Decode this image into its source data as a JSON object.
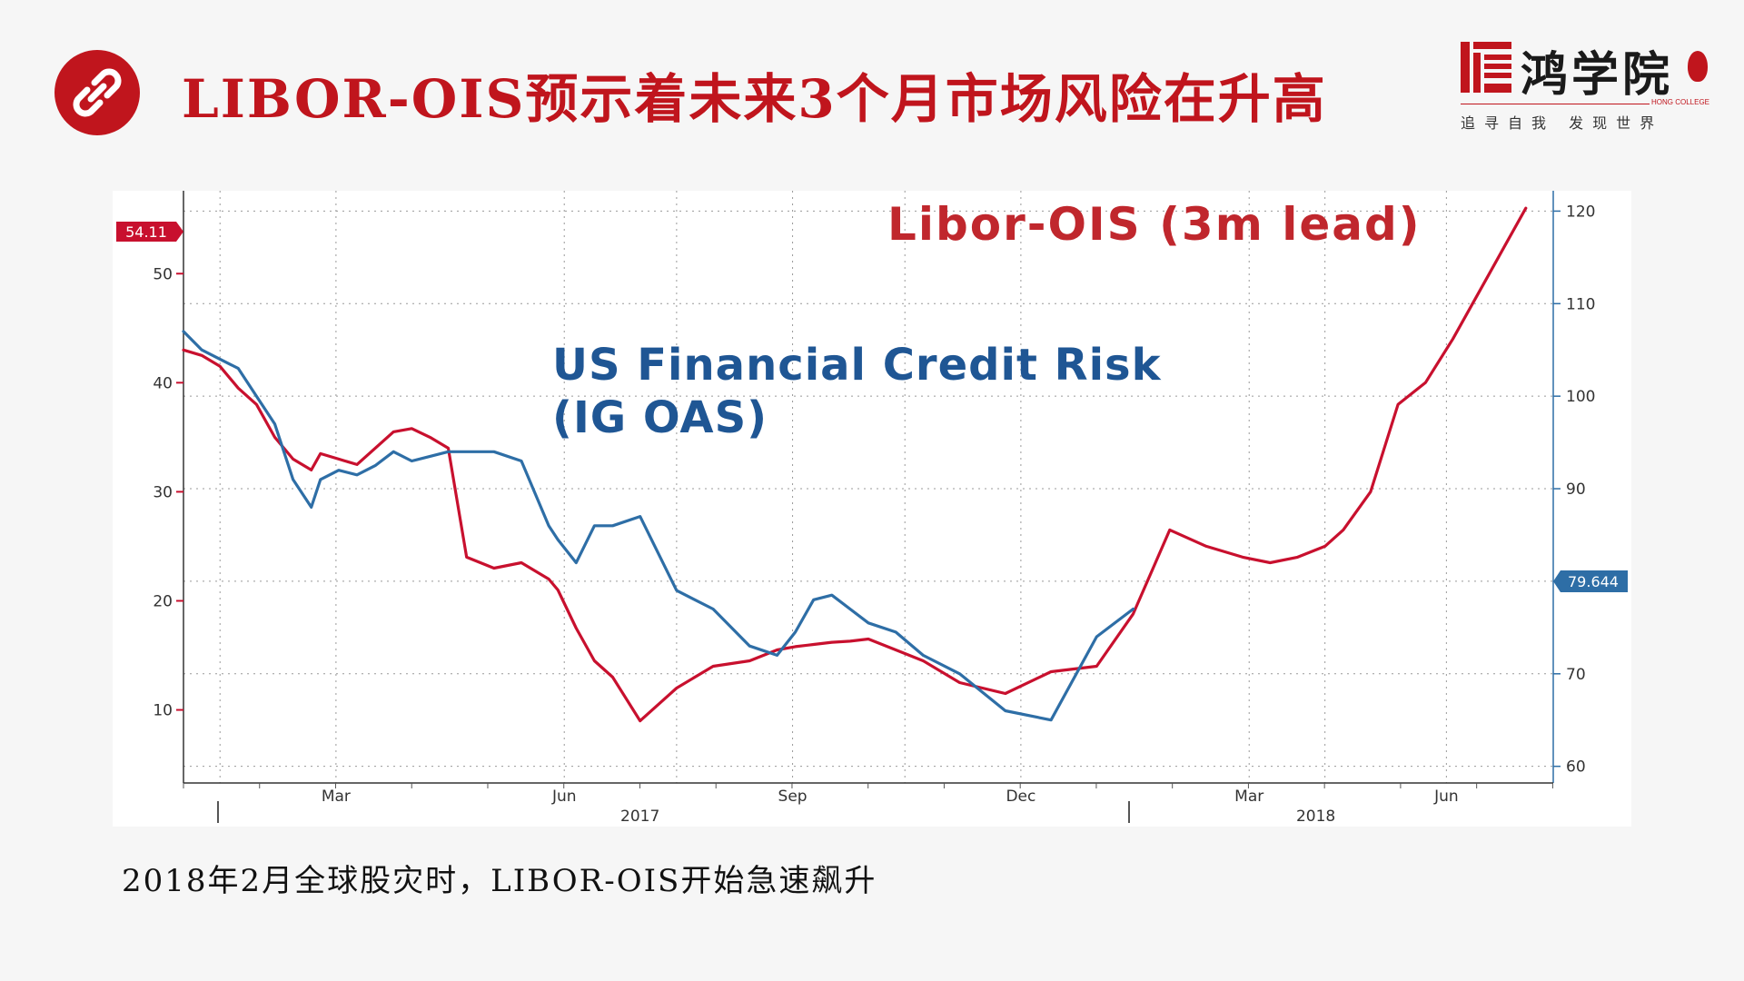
{
  "header": {
    "title": "LIBOR-OIS预示着未来3个月市场风险在升高",
    "link_icon": "link-icon"
  },
  "logo": {
    "name": "鸿学院",
    "college": "HONG COLLEGE",
    "slogan": "追寻自我 发现世界",
    "mark_icon": "hong-logo-mark",
    "seal_icon": "red-seal"
  },
  "caption": "2018年2月全球股灾时，LIBOR-OIS开始急速飙升",
  "colors": {
    "accent": "#c0151d",
    "red_series": "#c8102e",
    "blue_series": "#2e6ea6",
    "title_blue": "#1f5694"
  },
  "chart_data": {
    "type": "line",
    "x_ticks": [
      "Mar",
      "Jun",
      "Sep",
      "Dec",
      "Mar",
      "Jun"
    ],
    "x_years": [
      "2017",
      "2018"
    ],
    "left_axis": {
      "ticks": [
        "10",
        "20",
        "30",
        "40",
        "50"
      ],
      "ylim": [
        3.3,
        57.6
      ],
      "last_value": "54.11"
    },
    "right_axis": {
      "ticks": [
        "60",
        "70",
        "80",
        "90",
        "100",
        "110",
        "120"
      ],
      "ylim": [
        58.2,
        122.2
      ],
      "last_value": "79.644"
    },
    "grid": true,
    "series": [
      {
        "name": "Libor-OIS (3m lead)",
        "axis": "left",
        "color": "#c8102e",
        "x": [
          2017.0,
          2017.02,
          2017.04,
          2017.06,
          2017.08,
          2017.1,
          2017.12,
          2017.14,
          2017.15,
          2017.17,
          2017.19,
          2017.21,
          2017.23,
          2017.25,
          2017.27,
          2017.29,
          2017.31,
          2017.34,
          2017.37,
          2017.4,
          2017.41,
          2017.43,
          2017.45,
          2017.47,
          2017.5,
          2017.54,
          2017.58,
          2017.62,
          2017.65,
          2017.67,
          2017.69,
          2017.71,
          2017.73,
          2017.75,
          2017.78,
          2017.81,
          2017.85,
          2017.9,
          2017.95,
          2018.0,
          2018.04,
          2018.08,
          2018.12,
          2018.16,
          2018.19,
          2018.22,
          2018.25,
          2018.27,
          2018.3,
          2018.33,
          2018.36,
          2018.39,
          2018.41,
          2018.43,
          2018.45,
          2018.47
        ],
        "values": [
          43,
          42.5,
          41.5,
          39.5,
          38,
          35,
          33,
          32,
          33.5,
          33,
          32.5,
          34,
          35.5,
          35.8,
          35,
          34,
          24,
          23,
          23.5,
          22,
          21,
          17.5,
          14.5,
          13,
          9,
          12,
          14,
          14.5,
          15.5,
          15.8,
          16,
          16.2,
          16.3,
          16.5,
          15.5,
          14.5,
          12.5,
          11.5,
          13.5,
          14,
          18.8,
          26.5,
          25,
          24,
          23.5,
          24,
          25,
          26.5,
          30,
          38,
          40,
          44,
          47,
          50,
          53,
          56
        ]
      },
      {
        "name": "US Financial Credit Risk (IG OAS)",
        "axis": "right",
        "color": "#2e6ea6",
        "x": [
          2017.0,
          2017.02,
          2017.04,
          2017.06,
          2017.08,
          2017.1,
          2017.12,
          2017.14,
          2017.15,
          2017.17,
          2017.19,
          2017.21,
          2017.23,
          2017.25,
          2017.27,
          2017.29,
          2017.31,
          2017.34,
          2017.37,
          2017.4,
          2017.41,
          2017.43,
          2017.45,
          2017.47,
          2017.5,
          2017.54,
          2017.58,
          2017.62,
          2017.65,
          2017.67,
          2017.69,
          2017.71,
          2017.73,
          2017.75,
          2017.78,
          2017.81,
          2017.85,
          2017.9,
          2017.95,
          2018.0,
          2018.04
        ],
        "values": [
          107,
          105,
          104,
          103,
          100,
          97,
          91,
          88,
          91,
          92,
          91.5,
          92.5,
          94,
          93,
          93.5,
          94,
          94,
          94,
          93,
          86,
          84.5,
          82,
          86,
          86,
          87,
          79,
          77,
          73,
          72,
          74.5,
          78,
          78.5,
          77,
          75.5,
          74.5,
          72,
          70,
          66,
          65,
          74,
          77
        ]
      }
    ],
    "annotations": [
      {
        "text": "Libor-OIS (3m lead)",
        "color": "#c0272d"
      },
      {
        "text": "US Financial Credit Risk",
        "color": "#1f5694"
      },
      {
        "text": "(IG OAS)",
        "color": "#1f5694"
      }
    ]
  }
}
